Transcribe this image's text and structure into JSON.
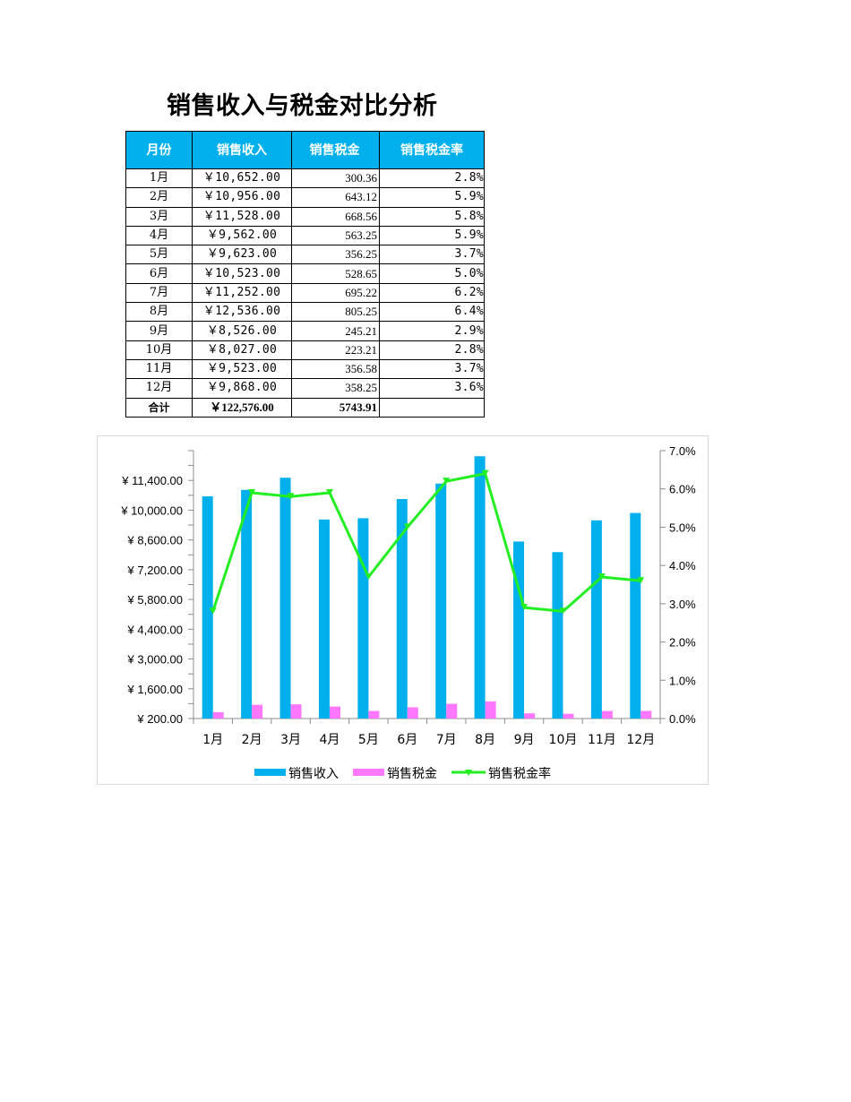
{
  "title": "销售收入与税金对比分析",
  "table": {
    "headers": [
      "月份",
      "销售收入",
      "销售税金",
      "销售税金率"
    ],
    "rows": [
      {
        "month": "1月",
        "revenue": "￥10,652.00",
        "tax": "300.36",
        "rate": "2.8%"
      },
      {
        "month": "2月",
        "revenue": "￥10,956.00",
        "tax": "643.12",
        "rate": "5.9%"
      },
      {
        "month": "3月",
        "revenue": "￥11,528.00",
        "tax": "668.56",
        "rate": "5.8%"
      },
      {
        "month": "4月",
        "revenue": "￥9,562.00",
        "tax": "563.25",
        "rate": "5.9%"
      },
      {
        "month": "5月",
        "revenue": "￥9,623.00",
        "tax": "356.25",
        "rate": "3.7%"
      },
      {
        "month": "6月",
        "revenue": "￥10,523.00",
        "tax": "528.65",
        "rate": "5.0%"
      },
      {
        "month": "7月",
        "revenue": "￥11,252.00",
        "tax": "695.22",
        "rate": "6.2%"
      },
      {
        "month": "8月",
        "revenue": "￥12,536.00",
        "tax": "805.25",
        "rate": "6.4%"
      },
      {
        "month": "9月",
        "revenue": "￥8,526.00",
        "tax": "245.21",
        "rate": "2.9%"
      },
      {
        "month": "10月",
        "revenue": "￥8,027.00",
        "tax": "223.21",
        "rate": "2.8%"
      },
      {
        "month": "11月",
        "revenue": "￥9,523.00",
        "tax": "356.58",
        "rate": "3.7%"
      },
      {
        "month": "12月",
        "revenue": "￥9,868.00",
        "tax": "358.25",
        "rate": "3.6%"
      }
    ],
    "total": {
      "label": "合计",
      "revenue": "￥122,576.00",
      "tax": "5743.91",
      "rate": ""
    }
  },
  "colors": {
    "header_bg": "#00b0ec",
    "revenue_bar": "#00b0ec",
    "tax_bar": "#ff77ff",
    "rate_line": "#22ee22"
  },
  "chart_data": {
    "type": "bar",
    "title": "",
    "categories": [
      "1月",
      "2月",
      "3月",
      "4月",
      "5月",
      "6月",
      "7月",
      "8月",
      "9月",
      "10月",
      "11月",
      "12月"
    ],
    "series": [
      {
        "name": "销售收入",
        "type": "bar",
        "axis": "left",
        "values": [
          10652,
          10956,
          11528,
          9562,
          9623,
          10523,
          11252,
          12536,
          8526,
          8027,
          9523,
          9868
        ]
      },
      {
        "name": "销售税金",
        "type": "bar",
        "axis": "left",
        "values": [
          300.36,
          643.12,
          668.56,
          563.25,
          356.25,
          528.65,
          695.22,
          805.25,
          245.21,
          223.21,
          356.58,
          358.25
        ]
      },
      {
        "name": "销售税金率",
        "type": "line",
        "axis": "right",
        "values": [
          0.028,
          0.059,
          0.058,
          0.059,
          0.037,
          0.05,
          0.062,
          0.064,
          0.029,
          0.028,
          0.037,
          0.036
        ]
      }
    ],
    "left_axis": {
      "min": 200,
      "max": 12800,
      "major": 1400,
      "minor": 700,
      "tick_labels": [
        "¥ 200.00",
        "¥ 1,600.00",
        "¥ 3,000.00",
        "¥ 4,400.00",
        "¥ 5,800.00",
        "¥ 7,200.00",
        "¥ 8,600.00",
        "¥ 10,000.00",
        "¥ 11,400.00"
      ]
    },
    "right_axis": {
      "min": 0,
      "max": 0.07,
      "major": 0.01,
      "tick_labels": [
        "0.0%",
        "1.0%",
        "2.0%",
        "3.0%",
        "4.0%",
        "5.0%",
        "6.0%",
        "7.0%"
      ]
    },
    "legend": [
      "销售收入",
      "销售税金",
      "销售税金率"
    ],
    "legend_position": "bottom",
    "grid": false
  }
}
